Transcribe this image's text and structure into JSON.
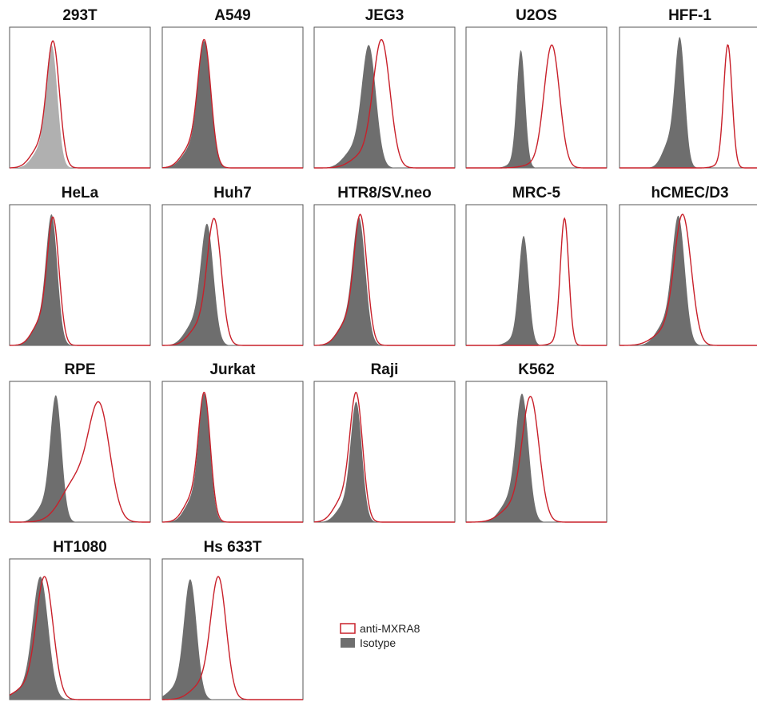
{
  "colors": {
    "antibody": "#c8202a",
    "isotype": "#6e6e6e",
    "isotype_light": "#b0b0b0",
    "frame": "#555555"
  },
  "legend": {
    "antibody_label": "anti-MXRA8",
    "isotype_label": "Isotype"
  },
  "chart_data": [
    {
      "type": "area",
      "title": "293T",
      "isotype": {
        "peak": 0.3,
        "width": 0.04,
        "shoulder": 0.14,
        "height": 0.92,
        "light": true
      },
      "antibody": {
        "peak": 0.31,
        "width": 0.045,
        "shoulder": 0.16,
        "height": 0.95
      }
    },
    {
      "type": "area",
      "title": "A549",
      "isotype": {
        "peak": 0.3,
        "width": 0.045,
        "shoulder": 0.15,
        "height": 0.95
      },
      "antibody": {
        "peak": 0.3,
        "width": 0.046,
        "shoulder": 0.16,
        "height": 0.96
      }
    },
    {
      "type": "area",
      "title": "JEG3",
      "isotype": {
        "peak": 0.39,
        "width": 0.05,
        "shoulder": 0.15,
        "height": 0.92
      },
      "antibody": {
        "peak": 0.48,
        "width": 0.06,
        "shoulder": 0.1,
        "height": 0.96
      }
    },
    {
      "type": "area",
      "title": "U2OS",
      "isotype": {
        "peak": 0.39,
        "width": 0.03,
        "shoulder": 0.03,
        "height": 0.88
      },
      "antibody": {
        "peak": 0.61,
        "width": 0.055,
        "shoulder": 0.03,
        "height": 0.92
      }
    },
    {
      "type": "area",
      "title": "HFF-1",
      "isotype": {
        "peak": 0.43,
        "width": 0.035,
        "shoulder": 0.2,
        "height": 0.98
      },
      "antibody": {
        "peak": 0.77,
        "width": 0.03,
        "shoulder": 0.02,
        "height": 0.92
      }
    },
    {
      "type": "area",
      "title": "HeLa",
      "isotype": {
        "peak": 0.3,
        "width": 0.04,
        "shoulder": 0.17,
        "height": 0.98
      },
      "antibody": {
        "peak": 0.31,
        "width": 0.042,
        "shoulder": 0.18,
        "height": 0.96
      }
    },
    {
      "type": "area",
      "title": "Huh7",
      "isotype": {
        "peak": 0.32,
        "width": 0.045,
        "shoulder": 0.18,
        "height": 0.91
      },
      "antibody": {
        "peak": 0.37,
        "width": 0.05,
        "shoulder": 0.15,
        "height": 0.95
      }
    },
    {
      "type": "area",
      "title": "HTR8/SV.neo",
      "isotype": {
        "peak": 0.32,
        "width": 0.045,
        "shoulder": 0.17,
        "height": 0.96
      },
      "antibody": {
        "peak": 0.33,
        "width": 0.046,
        "shoulder": 0.17,
        "height": 0.98
      }
    },
    {
      "type": "area",
      "title": "MRC-5",
      "isotype": {
        "peak": 0.41,
        "width": 0.035,
        "shoulder": 0.05,
        "height": 0.82
      },
      "antibody": {
        "peak": 0.7,
        "width": 0.03,
        "shoulder": 0.02,
        "height": 0.95
      }
    },
    {
      "type": "area",
      "title": "hCMEC/D3",
      "isotype": {
        "peak": 0.42,
        "width": 0.045,
        "shoulder": 0.17,
        "height": 0.97
      },
      "antibody": {
        "peak": 0.45,
        "width": 0.06,
        "shoulder": 0.1,
        "height": 0.98
      }
    },
    {
      "type": "area",
      "title": "RPE",
      "isotype": {
        "peak": 0.33,
        "width": 0.04,
        "shoulder": 0.13,
        "height": 0.95
      },
      "antibody": {
        "peak": 0.64,
        "width": 0.075,
        "shoulder": 0.38,
        "height": 0.9
      }
    },
    {
      "type": "area",
      "title": "Jurkat",
      "isotype": {
        "peak": 0.3,
        "width": 0.04,
        "shoulder": 0.17,
        "height": 0.96
      },
      "antibody": {
        "peak": 0.3,
        "width": 0.042,
        "shoulder": 0.18,
        "height": 0.97
      }
    },
    {
      "type": "area",
      "title": "Raji",
      "isotype": {
        "peak": 0.3,
        "width": 0.04,
        "shoulder": 0.14,
        "height": 0.9
      },
      "antibody": {
        "peak": 0.3,
        "width": 0.045,
        "shoulder": 0.18,
        "height": 0.97
      }
    },
    {
      "type": "area",
      "title": "K562",
      "isotype": {
        "peak": 0.4,
        "width": 0.045,
        "shoulder": 0.16,
        "height": 0.96
      },
      "antibody": {
        "peak": 0.46,
        "width": 0.06,
        "shoulder": 0.12,
        "height": 0.94
      }
    },
    {
      "type": "area",
      "title": "HT1080",
      "isotype": {
        "peak": 0.22,
        "width": 0.055,
        "shoulder": 0.08,
        "height": 0.92
      },
      "antibody": {
        "peak": 0.25,
        "width": 0.06,
        "shoulder": 0.1,
        "height": 0.92
      }
    },
    {
      "type": "area",
      "title": "Hs 633T",
      "isotype": {
        "peak": 0.2,
        "width": 0.045,
        "shoulder": 0.1,
        "height": 0.9
      },
      "antibody": {
        "peak": 0.4,
        "width": 0.055,
        "shoulder": 0.12,
        "height": 0.92
      }
    }
  ]
}
